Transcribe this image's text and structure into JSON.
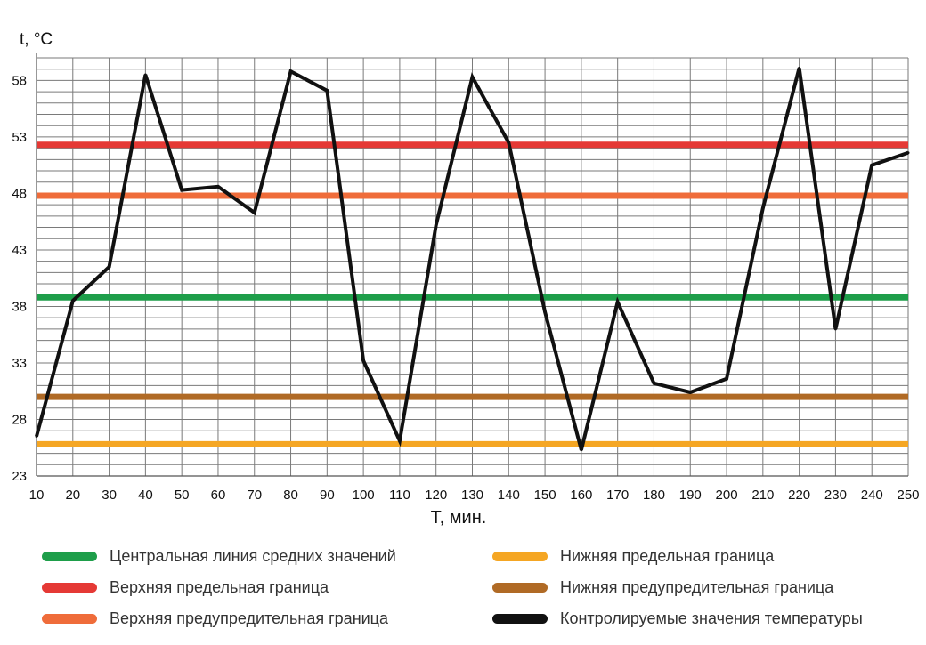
{
  "chart_data": {
    "type": "line",
    "title": "",
    "xlabel": "T, мин.",
    "ylabel": "t, °C",
    "xlim": [
      10,
      250
    ],
    "ylim": [
      23,
      60
    ],
    "x_ticks": [
      "10",
      "20",
      "30",
      "40",
      "50",
      "60",
      "70",
      "80",
      "90",
      "100",
      "110",
      "120",
      "130",
      "140",
      "150",
      "160",
      "170",
      "180",
      "190",
      "200",
      "210",
      "220",
      "230",
      "240",
      "250"
    ],
    "y_ticks": [
      "23",
      "28",
      "33",
      "38",
      "43",
      "48",
      "53",
      "58"
    ],
    "grid": true,
    "legend_position": "bottom",
    "x": [
      10,
      20,
      30,
      40,
      50,
      60,
      70,
      80,
      90,
      100,
      110,
      120,
      130,
      140,
      150,
      160,
      170,
      180,
      190,
      200,
      210,
      220,
      230,
      240,
      250
    ],
    "series": [
      {
        "name": "Контролируемые значения температуры",
        "color": "#111111",
        "values": [
          26.5,
          38.5,
          41.5,
          58.5,
          48.3,
          48.6,
          46.3,
          58.8,
          57.1,
          33.2,
          26.1,
          45.2,
          58.3,
          52.5,
          37.5,
          25.3,
          38.4,
          31.2,
          30.4,
          31.6,
          46.7,
          59.1,
          36.0,
          50.5,
          51.6
        ]
      }
    ],
    "reference_lines": [
      {
        "name": "Центральная линия средних значений",
        "color": "#1e9e4a",
        "value": 38.8
      },
      {
        "name": "Верхняя предельная граница",
        "color": "#e53935",
        "value": 52.3
      },
      {
        "name": "Верхняя предупредительная граница",
        "color": "#ef6c3a",
        "value": 47.8
      },
      {
        "name": "Нижняя предельная граница",
        "color": "#f5a623",
        "value": 25.8
      },
      {
        "name": "Нижняя предупредительная граница",
        "color": "#b06a25",
        "value": 30.0
      }
    ]
  },
  "legend": {
    "items": [
      {
        "label": "Центральная линия средних значений",
        "color": "#1e9e4a"
      },
      {
        "label": "Нижняя предельная граница",
        "color": "#f5a623"
      },
      {
        "label": "Верхняя предельная граница",
        "color": "#e53935"
      },
      {
        "label": "Нижняя предупредительная граница",
        "color": "#b06a25"
      },
      {
        "label": "Верхняя предупредительная граница",
        "color": "#ef6c3a"
      },
      {
        "label": "Контролируемые значения температуры",
        "color": "#111111"
      }
    ]
  }
}
